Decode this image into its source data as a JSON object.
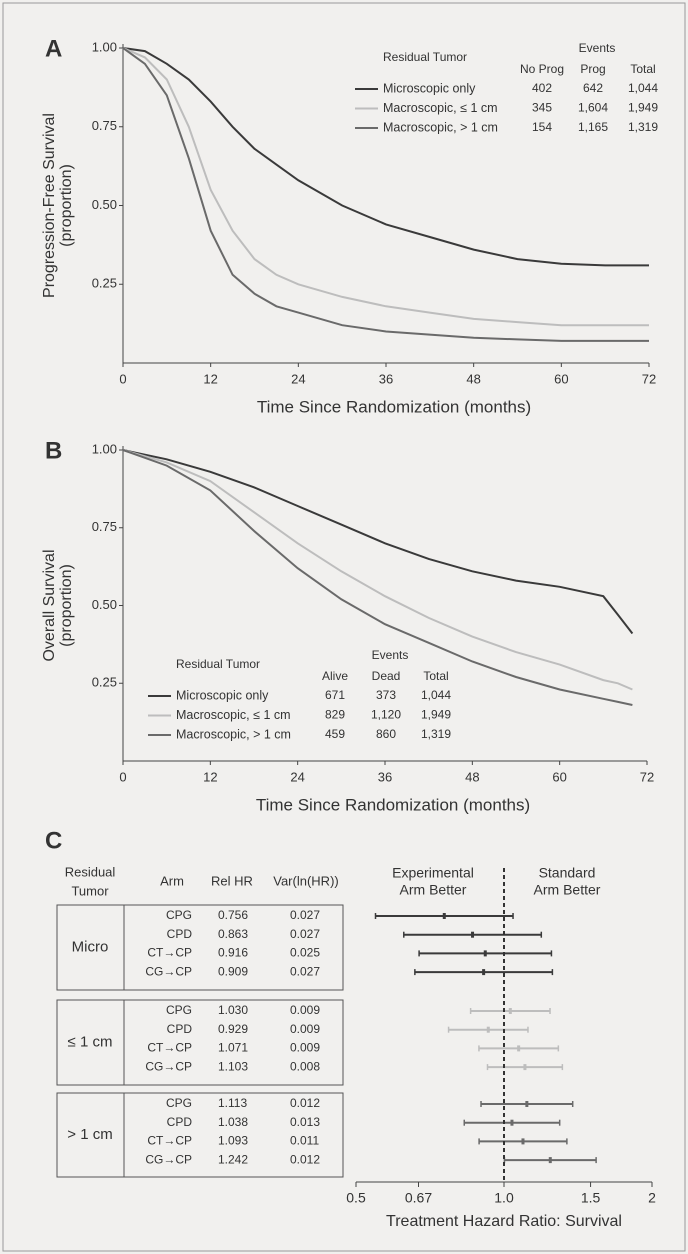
{
  "chart_data": [
    {
      "type": "line",
      "panel_label": "A",
      "xlabel": "Time Since Randomization (months)",
      "ylabel": [
        "Progression-Free Survival",
        "(proportion)"
      ],
      "xlim": [
        0,
        72
      ],
      "xticks": [
        0,
        12,
        24,
        36,
        48,
        60,
        72
      ],
      "ylim": [
        0,
        1
      ],
      "yticks": [
        0.25,
        {
          "value": 0.5,
          "label": "0.50"
        },
        0.75,
        {
          "value": 1,
          "label": "1.00"
        }
      ],
      "x": [
        0,
        3,
        6,
        9,
        12,
        15,
        18,
        21,
        24,
        30,
        36,
        42,
        48,
        54,
        60,
        66,
        72
      ],
      "series": [
        {
          "name": "Microscopic only",
          "color": "#3a3a3a",
          "values": [
            1,
            0.99,
            0.95,
            0.9,
            0.83,
            0.75,
            0.68,
            0.63,
            0.58,
            0.5,
            0.44,
            0.4,
            0.36,
            0.33,
            0.315,
            0.31,
            0.31
          ]
        },
        {
          "name": "Macroscopic, ≤ 1 cm",
          "color": "#bdbdbd",
          "values": [
            1,
            0.97,
            0.9,
            0.75,
            0.55,
            0.42,
            0.33,
            0.28,
            0.25,
            0.21,
            0.18,
            0.16,
            0.14,
            0.13,
            0.12,
            0.12,
            0.12
          ]
        },
        {
          "name": "Macroscopic, > 1 cm",
          "color": "#6a6a6a",
          "values": [
            1,
            0.95,
            0.85,
            0.65,
            0.42,
            0.28,
            0.22,
            0.18,
            0.16,
            0.12,
            0.1,
            0.09,
            0.08,
            0.075,
            0.07,
            0.07,
            0.07
          ]
        }
      ],
      "legend_position": "upper right",
      "legend_table": {
        "title": "Residual Tumor",
        "group_header": "Events",
        "columns": [
          "No Prog",
          "Prog",
          "Total"
        ],
        "rows": [
          [
            "402",
            "642",
            "1,044"
          ],
          [
            "345",
            "1,604",
            "1,949"
          ],
          [
            "154",
            "1,165",
            "1,319"
          ]
        ]
      }
    },
    {
      "type": "line",
      "panel_label": "B",
      "xlabel": "Time Since Randomization (months)",
      "ylabel": [
        "Overall Survival",
        "(proportion)"
      ],
      "xlim": [
        0,
        72
      ],
      "xticks": [
        0,
        12,
        24,
        36,
        48,
        60,
        72
      ],
      "ylim": [
        0,
        1
      ],
      "yticks": [
        0.25,
        {
          "value": 0.5,
          "label": "0.50"
        },
        0.75,
        {
          "value": 1,
          "label": "1.00"
        }
      ],
      "x": [
        0,
        6,
        12,
        18,
        24,
        30,
        36,
        42,
        48,
        54,
        60,
        66,
        68,
        70
      ],
      "series": [
        {
          "name": "Microscopic only",
          "color": "#3a3a3a",
          "values": [
            1,
            0.97,
            0.93,
            0.88,
            0.82,
            0.76,
            0.7,
            0.65,
            0.61,
            0.58,
            0.56,
            0.53,
            0.47,
            0.41
          ]
        },
        {
          "name": "Macroscopic, ≤ 1 cm",
          "color": "#bdbdbd",
          "values": [
            1,
            0.96,
            0.9,
            0.8,
            0.7,
            0.61,
            0.53,
            0.46,
            0.4,
            0.35,
            0.31,
            0.26,
            0.25,
            0.23
          ]
        },
        {
          "name": "Macroscopic, > 1 cm",
          "color": "#6a6a6a",
          "values": [
            1,
            0.95,
            0.87,
            0.74,
            0.62,
            0.52,
            0.44,
            0.38,
            0.32,
            0.27,
            0.23,
            0.2,
            0.19,
            0.18
          ]
        }
      ],
      "legend_position": "lower left",
      "legend_table": {
        "title": "Residual Tumor",
        "group_header": "Events",
        "columns": [
          "Alive",
          "Dead",
          "Total"
        ],
        "rows": [
          [
            "671",
            "373",
            "1,044"
          ],
          [
            "829",
            "1,120",
            "1,949"
          ],
          [
            "459",
            "860",
            "1,319"
          ]
        ]
      }
    },
    {
      "type": "forest",
      "panel_label": "C",
      "table_headers": [
        [
          "Residual",
          "Tumor"
        ],
        "Arm",
        "Rel HR",
        "Var(ln(HR))"
      ],
      "left_label": [
        "Experimental",
        "Arm Better"
      ],
      "right_label": [
        "Standard",
        "Arm Better"
      ],
      "xlabel": "Treatment Hazard Ratio: Survival",
      "log_x": true,
      "xlim": [
        0.5,
        2
      ],
      "xticks": [
        0.5,
        0.67,
        {
          "value": 1,
          "label": "1.0"
        },
        1.5,
        2
      ],
      "reference": 1,
      "groups": [
        {
          "name": "Micro",
          "color": "#3a3a3a",
          "arms": [
            "CPG",
            "CPD",
            "CT→CP",
            "CG→CP"
          ],
          "hr": [
            0.756,
            0.863,
            0.916,
            0.909
          ],
          "hr_labels": [
            "0.756",
            "0.863",
            "0.916",
            "0.909"
          ],
          "var": [
            0.027,
            0.027,
            0.025,
            0.027
          ]
        },
        {
          "name": "≤ 1 cm",
          "color": "#bdbdbd",
          "arms": [
            "CPG",
            "CPD",
            "CT→CP",
            "CG→CP"
          ],
          "hr": [
            1.03,
            0.929,
            1.071,
            1.103
          ],
          "hr_labels": [
            "1.030",
            "0.929",
            "1.071",
            "1.103"
          ],
          "var": [
            0.009,
            0.009,
            0.009,
            0.008
          ]
        },
        {
          "name": "> 1 cm",
          "color": "#6a6a6a",
          "arms": [
            "CPG",
            "CPD",
            "CT→CP",
            "CG→CP"
          ],
          "hr": [
            1.113,
            1.038,
            1.093,
            1.242
          ],
          "hr_labels": [
            "1.113",
            "1.038",
            "1.093",
            "1.242"
          ],
          "var": [
            0.012,
            0.013,
            0.011,
            0.012
          ]
        }
      ]
    }
  ]
}
